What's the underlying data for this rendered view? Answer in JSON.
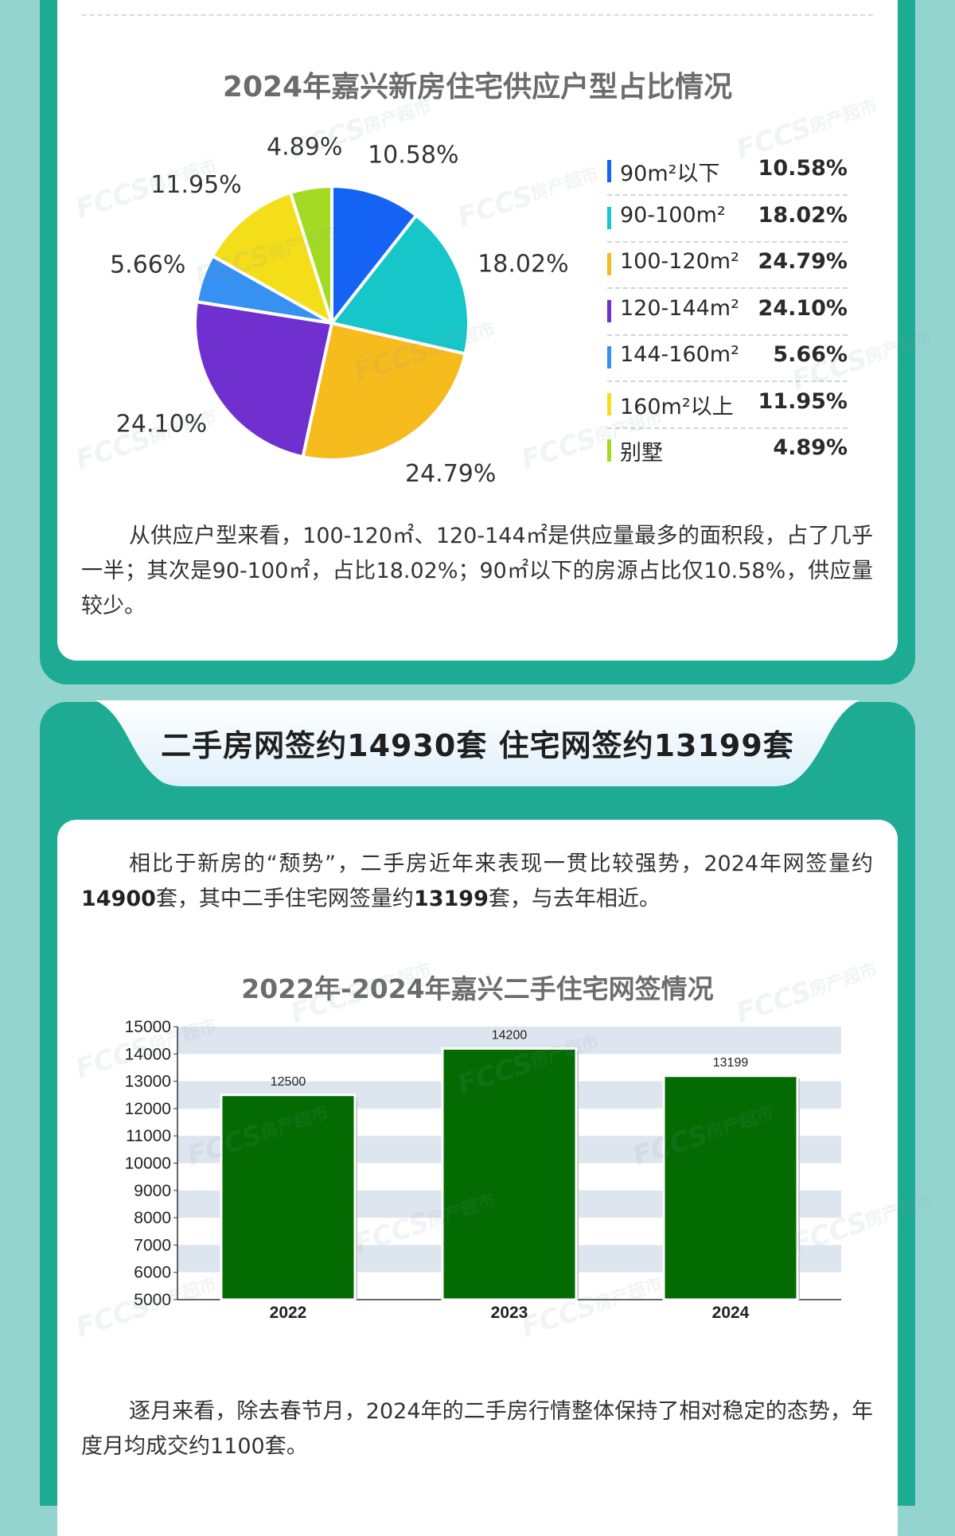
{
  "pie_section": {
    "title": "2024年嘉兴新房住宅供应户型占比情况",
    "paragraph": "从供应户型来看，100-120㎡、120-144㎡是供应量最多的面积段，占了几乎一半；其次是90-100㎡，占比18.02%；90㎡以下的房源占比仅10.58%，供应量较少。"
  },
  "ribbon": {
    "text": "二手房网签约14930套  住宅网签约13199套"
  },
  "bar_section": {
    "intro_parts": [
      "相比于新房的“颓势”，二手房近年来表现一贯比较强势，2024年网签量约",
      "14900",
      "套，其中二手住宅网签量约",
      "13199",
      "套，与去年相近。"
    ],
    "title": "2022年-2024年嘉兴二手住宅网签情况",
    "paragraph": "逐月来看，除去春节月，2024年的二手房行情整体保持了相对稳定的态势，年度月均成交约1100套。"
  },
  "watermark": {
    "brand": "FCCS",
    "brand_cn": "房产超市"
  },
  "chart_data": [
    {
      "type": "pie",
      "title": "2024年嘉兴新房住宅供应户型占比情况",
      "slices": [
        {
          "label": "90m²以下",
          "value": 10.58,
          "display": "10.58%",
          "color": "#1463f5"
        },
        {
          "label": "90-100m²",
          "value": 18.02,
          "display": "18.02%",
          "color": "#16c6c8"
        },
        {
          "label": "100-120m²",
          "value": 24.79,
          "display": "24.79%",
          "color": "#f6bb1d"
        },
        {
          "label": "120-144m²",
          "value": 24.1,
          "display": "24.10%",
          "color": "#7030d0"
        },
        {
          "label": "144-160m²",
          "value": 5.66,
          "display": "5.66%",
          "color": "#3791f3"
        },
        {
          "label": "160m²以上",
          "value": 11.95,
          "display": "11.95%",
          "color": "#f3de19"
        },
        {
          "label": "别墅",
          "value": 4.89,
          "display": "4.89%",
          "color": "#a3db24"
        }
      ],
      "legend_placement": "right"
    },
    {
      "type": "bar",
      "title": "2022年-2024年嘉兴二手住宅网签情况",
      "categories": [
        "2022",
        "2023",
        "2024"
      ],
      "values": [
        12500,
        14200,
        13199
      ],
      "ylim": [
        5000,
        15000
      ],
      "yticks": [
        5000,
        6000,
        7000,
        8000,
        9000,
        10000,
        11000,
        12000,
        13000,
        14000,
        15000
      ],
      "bar_color": "#036b02",
      "grid": "alternating-bands",
      "band_color": "#dde5ef"
    }
  ]
}
